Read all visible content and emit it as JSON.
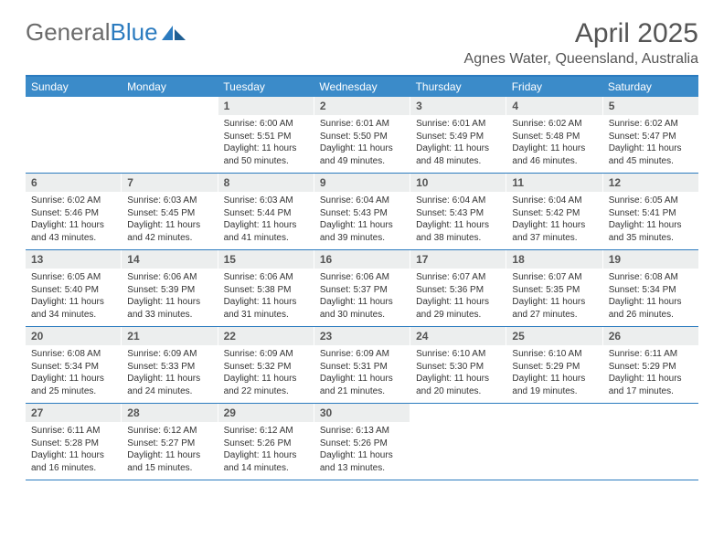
{
  "logo": {
    "word1": "General",
    "word2": "Blue"
  },
  "title": "April 2025",
  "location": "Agnes Water, Queensland, Australia",
  "colors": {
    "header_bg": "#3b8bc9",
    "border": "#2b7bbf",
    "daynum_bg": "#eceeee",
    "text": "#333333",
    "title_text": "#555555"
  },
  "dayNames": [
    "Sunday",
    "Monday",
    "Tuesday",
    "Wednesday",
    "Thursday",
    "Friday",
    "Saturday"
  ],
  "weeks": [
    [
      null,
      null,
      {
        "n": "1",
        "sr": "Sunrise: 6:00 AM",
        "ss": "Sunset: 5:51 PM",
        "dl": "Daylight: 11 hours and 50 minutes."
      },
      {
        "n": "2",
        "sr": "Sunrise: 6:01 AM",
        "ss": "Sunset: 5:50 PM",
        "dl": "Daylight: 11 hours and 49 minutes."
      },
      {
        "n": "3",
        "sr": "Sunrise: 6:01 AM",
        "ss": "Sunset: 5:49 PM",
        "dl": "Daylight: 11 hours and 48 minutes."
      },
      {
        "n": "4",
        "sr": "Sunrise: 6:02 AM",
        "ss": "Sunset: 5:48 PM",
        "dl": "Daylight: 11 hours and 46 minutes."
      },
      {
        "n": "5",
        "sr": "Sunrise: 6:02 AM",
        "ss": "Sunset: 5:47 PM",
        "dl": "Daylight: 11 hours and 45 minutes."
      }
    ],
    [
      {
        "n": "6",
        "sr": "Sunrise: 6:02 AM",
        "ss": "Sunset: 5:46 PM",
        "dl": "Daylight: 11 hours and 43 minutes."
      },
      {
        "n": "7",
        "sr": "Sunrise: 6:03 AM",
        "ss": "Sunset: 5:45 PM",
        "dl": "Daylight: 11 hours and 42 minutes."
      },
      {
        "n": "8",
        "sr": "Sunrise: 6:03 AM",
        "ss": "Sunset: 5:44 PM",
        "dl": "Daylight: 11 hours and 41 minutes."
      },
      {
        "n": "9",
        "sr": "Sunrise: 6:04 AM",
        "ss": "Sunset: 5:43 PM",
        "dl": "Daylight: 11 hours and 39 minutes."
      },
      {
        "n": "10",
        "sr": "Sunrise: 6:04 AM",
        "ss": "Sunset: 5:43 PM",
        "dl": "Daylight: 11 hours and 38 minutes."
      },
      {
        "n": "11",
        "sr": "Sunrise: 6:04 AM",
        "ss": "Sunset: 5:42 PM",
        "dl": "Daylight: 11 hours and 37 minutes."
      },
      {
        "n": "12",
        "sr": "Sunrise: 6:05 AM",
        "ss": "Sunset: 5:41 PM",
        "dl": "Daylight: 11 hours and 35 minutes."
      }
    ],
    [
      {
        "n": "13",
        "sr": "Sunrise: 6:05 AM",
        "ss": "Sunset: 5:40 PM",
        "dl": "Daylight: 11 hours and 34 minutes."
      },
      {
        "n": "14",
        "sr": "Sunrise: 6:06 AM",
        "ss": "Sunset: 5:39 PM",
        "dl": "Daylight: 11 hours and 33 minutes."
      },
      {
        "n": "15",
        "sr": "Sunrise: 6:06 AM",
        "ss": "Sunset: 5:38 PM",
        "dl": "Daylight: 11 hours and 31 minutes."
      },
      {
        "n": "16",
        "sr": "Sunrise: 6:06 AM",
        "ss": "Sunset: 5:37 PM",
        "dl": "Daylight: 11 hours and 30 minutes."
      },
      {
        "n": "17",
        "sr": "Sunrise: 6:07 AM",
        "ss": "Sunset: 5:36 PM",
        "dl": "Daylight: 11 hours and 29 minutes."
      },
      {
        "n": "18",
        "sr": "Sunrise: 6:07 AM",
        "ss": "Sunset: 5:35 PM",
        "dl": "Daylight: 11 hours and 27 minutes."
      },
      {
        "n": "19",
        "sr": "Sunrise: 6:08 AM",
        "ss": "Sunset: 5:34 PM",
        "dl": "Daylight: 11 hours and 26 minutes."
      }
    ],
    [
      {
        "n": "20",
        "sr": "Sunrise: 6:08 AM",
        "ss": "Sunset: 5:34 PM",
        "dl": "Daylight: 11 hours and 25 minutes."
      },
      {
        "n": "21",
        "sr": "Sunrise: 6:09 AM",
        "ss": "Sunset: 5:33 PM",
        "dl": "Daylight: 11 hours and 24 minutes."
      },
      {
        "n": "22",
        "sr": "Sunrise: 6:09 AM",
        "ss": "Sunset: 5:32 PM",
        "dl": "Daylight: 11 hours and 22 minutes."
      },
      {
        "n": "23",
        "sr": "Sunrise: 6:09 AM",
        "ss": "Sunset: 5:31 PM",
        "dl": "Daylight: 11 hours and 21 minutes."
      },
      {
        "n": "24",
        "sr": "Sunrise: 6:10 AM",
        "ss": "Sunset: 5:30 PM",
        "dl": "Daylight: 11 hours and 20 minutes."
      },
      {
        "n": "25",
        "sr": "Sunrise: 6:10 AM",
        "ss": "Sunset: 5:29 PM",
        "dl": "Daylight: 11 hours and 19 minutes."
      },
      {
        "n": "26",
        "sr": "Sunrise: 6:11 AM",
        "ss": "Sunset: 5:29 PM",
        "dl": "Daylight: 11 hours and 17 minutes."
      }
    ],
    [
      {
        "n": "27",
        "sr": "Sunrise: 6:11 AM",
        "ss": "Sunset: 5:28 PM",
        "dl": "Daylight: 11 hours and 16 minutes."
      },
      {
        "n": "28",
        "sr": "Sunrise: 6:12 AM",
        "ss": "Sunset: 5:27 PM",
        "dl": "Daylight: 11 hours and 15 minutes."
      },
      {
        "n": "29",
        "sr": "Sunrise: 6:12 AM",
        "ss": "Sunset: 5:26 PM",
        "dl": "Daylight: 11 hours and 14 minutes."
      },
      {
        "n": "30",
        "sr": "Sunrise: 6:13 AM",
        "ss": "Sunset: 5:26 PM",
        "dl": "Daylight: 11 hours and 13 minutes."
      },
      null,
      null,
      null
    ]
  ]
}
